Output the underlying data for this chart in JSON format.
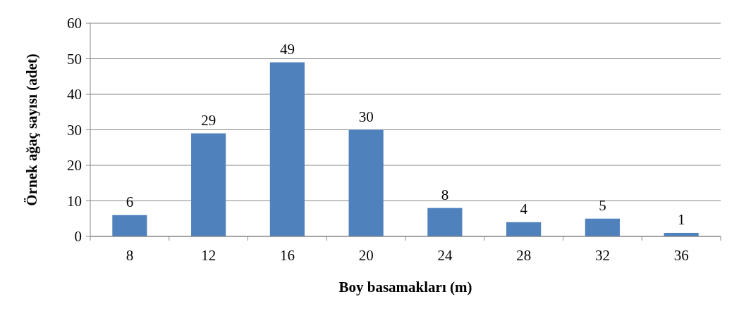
{
  "chart_data": {
    "type": "bar",
    "xlabel": "Boy basamakları (m)",
    "ylabel": "Örnek ağaç sayısı (adet)",
    "categories": [
      "8",
      "12",
      "16",
      "20",
      "24",
      "28",
      "32",
      "36"
    ],
    "values": [
      6,
      29,
      49,
      30,
      8,
      4,
      5,
      1
    ],
    "color": "#4f81bd",
    "ylim": [
      0,
      60
    ],
    "yticks": [
      0,
      10,
      20,
      30,
      40,
      50,
      60
    ],
    "grid": "y",
    "data_labels": true
  }
}
